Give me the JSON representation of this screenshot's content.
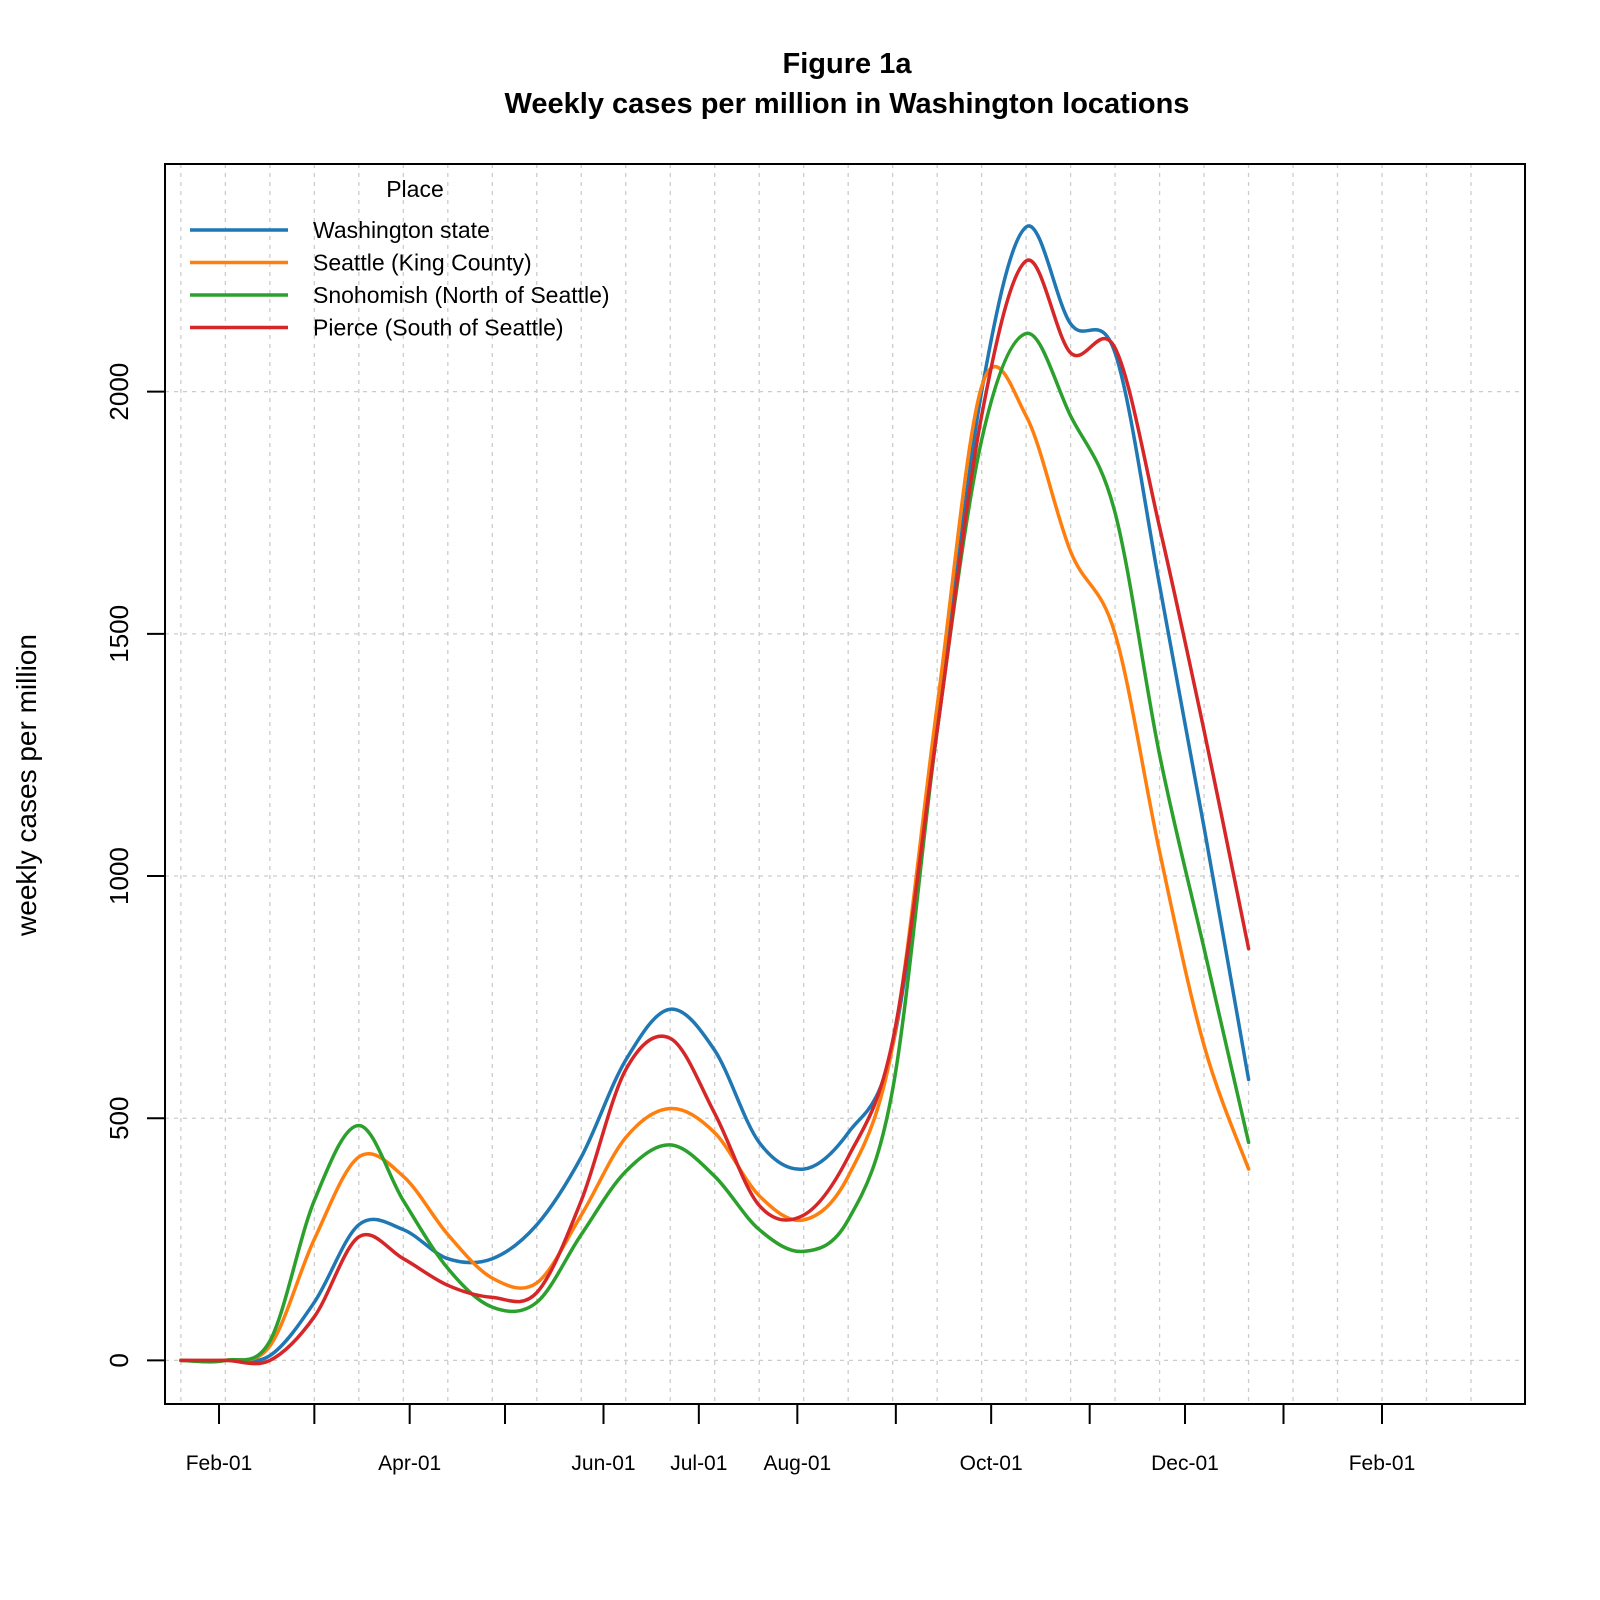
{
  "chart_data": {
    "type": "line",
    "title": "Figure 1a",
    "subtitle": "Weekly cases per million in Washington locations",
    "xlabel": "",
    "ylabel": "weekly cases per million",
    "x_dates": [
      "2020-01-20",
      "2020-02-03",
      "2020-02-17",
      "2020-03-02",
      "2020-03-16",
      "2020-03-30",
      "2020-04-13",
      "2020-04-27",
      "2020-05-11",
      "2020-05-25",
      "2020-06-08",
      "2020-06-22",
      "2020-07-06",
      "2020-07-20",
      "2020-08-03",
      "2020-08-17",
      "2020-08-31",
      "2020-09-14",
      "2020-09-28",
      "2020-10-12",
      "2020-10-26",
      "2020-11-09",
      "2020-11-23",
      "2020-12-07",
      "2020-12-21",
      "2021-01-04",
      "2021-01-18",
      "2021-02-01",
      "2021-02-15",
      "2021-03-01"
    ],
    "xticks": [
      {
        "date": "2020-02-01",
        "label": "Feb-01"
      },
      {
        "date": "2020-04-01",
        "label": "Apr-01"
      },
      {
        "date": "2020-06-01",
        "label": "Jun-01"
      },
      {
        "date": "2020-07-01",
        "label": "Jul-01"
      },
      {
        "date": "2020-08-01",
        "label": "Aug-01"
      },
      {
        "date": "2020-10-01",
        "label": "Oct-01"
      },
      {
        "date": "2020-12-01",
        "label": "Dec-01"
      },
      {
        "date": "2021-02-01",
        "label": "Feb-01"
      }
    ],
    "yticks": [
      0,
      500,
      1000,
      1500,
      2000
    ],
    "ylim": [
      -90,
      2470
    ],
    "xlim": [
      "2020-01-15",
      "2021-03-18"
    ],
    "grid": true,
    "legend": {
      "title": "Place",
      "position": "top-left"
    },
    "series": [
      {
        "name": "Washington state",
        "color": "#1f77b4",
        "values": [
          0,
          0,
          10,
          120,
          280,
          270,
          210,
          210,
          280,
          420,
          620,
          725,
          640,
          450,
          395,
          470,
          650,
          1300,
          2000,
          2340,
          2140,
          2080,
          1600,
          1100,
          580,
          null,
          null,
          null,
          null,
          null
        ]
      },
      {
        "name": "Seattle (King County)",
        "color": "#ff7f0e",
        "values": [
          0,
          0,
          30,
          250,
          420,
          380,
          260,
          170,
          160,
          300,
          460,
          520,
          470,
          340,
          290,
          380,
          650,
          1350,
          2010,
          1950,
          1670,
          1500,
          1050,
          650,
          395,
          null,
          null,
          null,
          null,
          null
        ]
      },
      {
        "name": "Snohomish (North of Seattle)",
        "color": "#2ca02c",
        "values": [
          0,
          0,
          40,
          330,
          485,
          330,
          190,
          110,
          120,
          260,
          390,
          445,
          380,
          270,
          225,
          290,
          560,
          1300,
          1900,
          2120,
          1950,
          1750,
          1250,
          850,
          450,
          null,
          null,
          null,
          null,
          null
        ]
      },
      {
        "name": "Pierce (South of Seattle)",
        "color": "#d62728",
        "values": [
          0,
          0,
          0,
          90,
          255,
          210,
          155,
          130,
          140,
          330,
          600,
          665,
          510,
          320,
          300,
          420,
          660,
          1300,
          1950,
          2270,
          2080,
          2090,
          1720,
          1300,
          850,
          null,
          null,
          null,
          null,
          null
        ]
      }
    ]
  }
}
